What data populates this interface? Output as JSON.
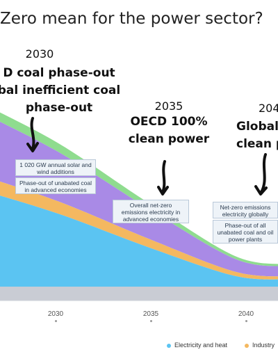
{
  "title": "Zero mean for the power sector?",
  "annotations": {
    "y2030": "2030",
    "m2030_lines": [
      "D coal phase-out",
      "bal inefficient coal",
      "phase-out"
    ],
    "y2035": "2035",
    "m2035_lines": [
      "OECD 100%",
      "clean power"
    ],
    "y2040": "204",
    "m2040_lines": [
      "Global",
      "clean p"
    ]
  },
  "callouts": {
    "c1": "1 020 GW annual solar and wind additions",
    "c2": "Phase-out of unabated coal in advanced economies",
    "c3": "Overall net-zero emissions electricity in advanced economies",
    "c4": "Net-zero emissions electricity globally",
    "c5": "Phase-out of all unabated coal and oil power plants"
  },
  "colors": {
    "electricity": "#5bc4f2",
    "industry": "#f4b860",
    "purple": "#a98ae6",
    "green": "#8fdc8f",
    "base": "#c9ccd4"
  },
  "chart_data": {
    "type": "area",
    "x": [
      2026,
      2030,
      2035,
      2040,
      2043
    ],
    "x_tick_labels": [
      "2030",
      "2035",
      "2040"
    ],
    "series": [
      {
        "name": "Electricity and heat",
        "values": [
          13,
          10,
          5.5,
          1.5,
          1
        ]
      },
      {
        "name": "Industry",
        "values": [
          2,
          1.7,
          1.2,
          0.6,
          0.4
        ]
      },
      {
        "name": "",
        "values": [
          8.5,
          6.8,
          4.2,
          1.8,
          1.4
        ]
      },
      {
        "name": "",
        "values": [
          1.3,
          1.2,
          0.8,
          0.4,
          0.3
        ]
      }
    ],
    "ylim": [
      0,
      40
    ],
    "legend": "bottom"
  }
}
